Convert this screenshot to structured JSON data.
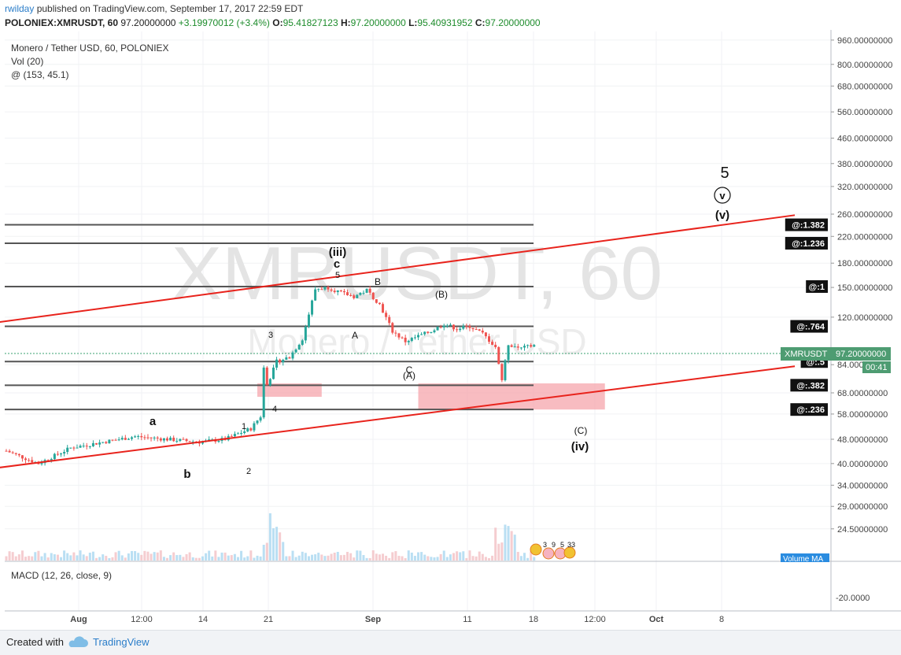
{
  "header": {
    "author": "rwilday",
    "published_text": "published on TradingView.com, September 17, 2017 22:59 EDT",
    "symbol_line": "POLONIEX:XMRUSDT, 60",
    "price": "97.20000000",
    "change": "+3.19970012 (+3.4%)",
    "open_label": "O:",
    "open": "95.41827123",
    "high_label": "H:",
    "high": "97.20000000",
    "low_label": "L:",
    "low": "95.40931952",
    "close_label": "C:",
    "close": "97.20000000"
  },
  "legend": {
    "title": "Monero / Tether USD, 60, POLONIEX",
    "volume": "Vol (20)",
    "at": "@ (153, 45.1)"
  },
  "watermark": {
    "line1": "XMRUSDT, 60",
    "line2": "Monero / Tether USD"
  },
  "price_axis": {
    "ticks": [
      "960.00000000",
      "800.00000000",
      "680.00000000",
      "560.00000000",
      "460.00000000",
      "380.00000000",
      "320.00000000",
      "260.00000000",
      "220.00000000",
      "180.00000000",
      "150.00000000",
      "120.00000000",
      "84.00000000",
      "68.00000000",
      "58.00000000",
      "48.00000000",
      "40.00000000",
      "34.00000000",
      "29.00000000",
      "24.50000000"
    ],
    "current_symbol": "XMRUSDT",
    "current_value": "97.20000000",
    "countdown": "00:41",
    "volume_ma": "Volume MA"
  },
  "fib_labels": [
    "@:1.382",
    "@:1.236",
    "@:1",
    "@:.764",
    "@:.5",
    "@:.382",
    "@:.236"
  ],
  "wave_labels": {
    "v_big": "5",
    "v_circled": "v",
    "v_paren": "(v)",
    "iii": "(iii)",
    "c": "c",
    "five": "5",
    "B": "B",
    "B_paren": "(B)",
    "A": "A",
    "C": "C",
    "A_paren": "(A)",
    "three": "3",
    "four": "4",
    "one": "1",
    "two": "2",
    "a": "a",
    "b": "b",
    "C_paren": "(C)",
    "iv": "(iv)"
  },
  "events": [
    "3",
    "9",
    "5",
    "33"
  ],
  "macd": {
    "title": "MACD (12, 26, close, 9)",
    "tick": "-20.0000"
  },
  "time_axis": [
    "Aug",
    "12:00",
    "14",
    "21",
    "Sep",
    "11",
    "18",
    "12:00",
    "Oct",
    "8"
  ],
  "footer": {
    "created_with": "Created with",
    "brand": "TradingView"
  },
  "chart_data": {
    "type": "candlestick",
    "title": "Monero / Tether USD, 60, POLONIEX",
    "ylabel": "",
    "y_scale": "log",
    "ylim": [
      22,
      1000
    ],
    "x": [
      "Aug",
      "12:00",
      "14",
      "21",
      "Sep",
      "11",
      "18",
      "12:00",
      "Oct",
      "8"
    ],
    "series": [
      {
        "name": "XMRUSDT",
        "approx_close_path": [
          [
            0,
            44
          ],
          [
            10,
            40
          ],
          [
            20,
            45
          ],
          [
            30,
            47
          ],
          [
            40,
            49
          ],
          [
            50,
            48
          ],
          [
            60,
            47
          ],
          [
            68,
            48
          ],
          [
            72,
            50
          ],
          [
            76,
            52
          ],
          [
            79,
            57
          ],
          [
            80,
            82
          ],
          [
            81,
            72
          ],
          [
            84,
            86
          ],
          [
            88,
            89
          ],
          [
            92,
            102
          ],
          [
            96,
            148
          ],
          [
            100,
            150
          ],
          [
            104,
            144
          ],
          [
            108,
            140
          ],
          [
            112,
            147
          ],
          [
            116,
            132
          ],
          [
            120,
            108
          ],
          [
            124,
            100
          ],
          [
            128,
            104
          ],
          [
            132,
            108
          ],
          [
            136,
            114
          ],
          [
            140,
            110
          ],
          [
            144,
            112
          ],
          [
            148,
            106
          ],
          [
            152,
            96
          ],
          [
            154,
            75
          ],
          [
            156,
            98
          ],
          [
            160,
            95
          ],
          [
            164,
            97.2
          ]
        ]
      }
    ],
    "fib_levels": [
      {
        "label": "@:1.382",
        "value": 240
      },
      {
        "label": "@:1.236",
        "value": 209
      },
      {
        "label": "@:1",
        "value": 151
      },
      {
        "label": "@:.764",
        "value": 112
      },
      {
        "label": "@:.5",
        "value": 86
      },
      {
        "label": "@:.382",
        "value": 72
      },
      {
        "label": "@:.236",
        "value": 60
      }
    ],
    "trendlines": [
      {
        "from": [
          -50,
          99
        ],
        "to": [
          245,
          258
        ]
      },
      {
        "from": [
          -50,
          33.5
        ],
        "to": [
          245,
          83
        ]
      }
    ],
    "zones": [
      {
        "from": [
          78,
          66
        ],
        "to": [
          98,
          73
        ]
      },
      {
        "from": [
          128,
          60
        ],
        "to": [
          186,
          73
        ]
      }
    ],
    "macd": {
      "title": "MACD (12, 26, close, 9)",
      "ticks": [
        -20
      ]
    },
    "grid": true,
    "legend": "top-left",
    "colors": {
      "up": "#26a69a",
      "down": "#ef5350",
      "trend": "#e8231c",
      "fib": "#555555",
      "zone": "#f6a6ac",
      "volume": "#a9d7f0",
      "accent": "#1e8c2c"
    }
  }
}
